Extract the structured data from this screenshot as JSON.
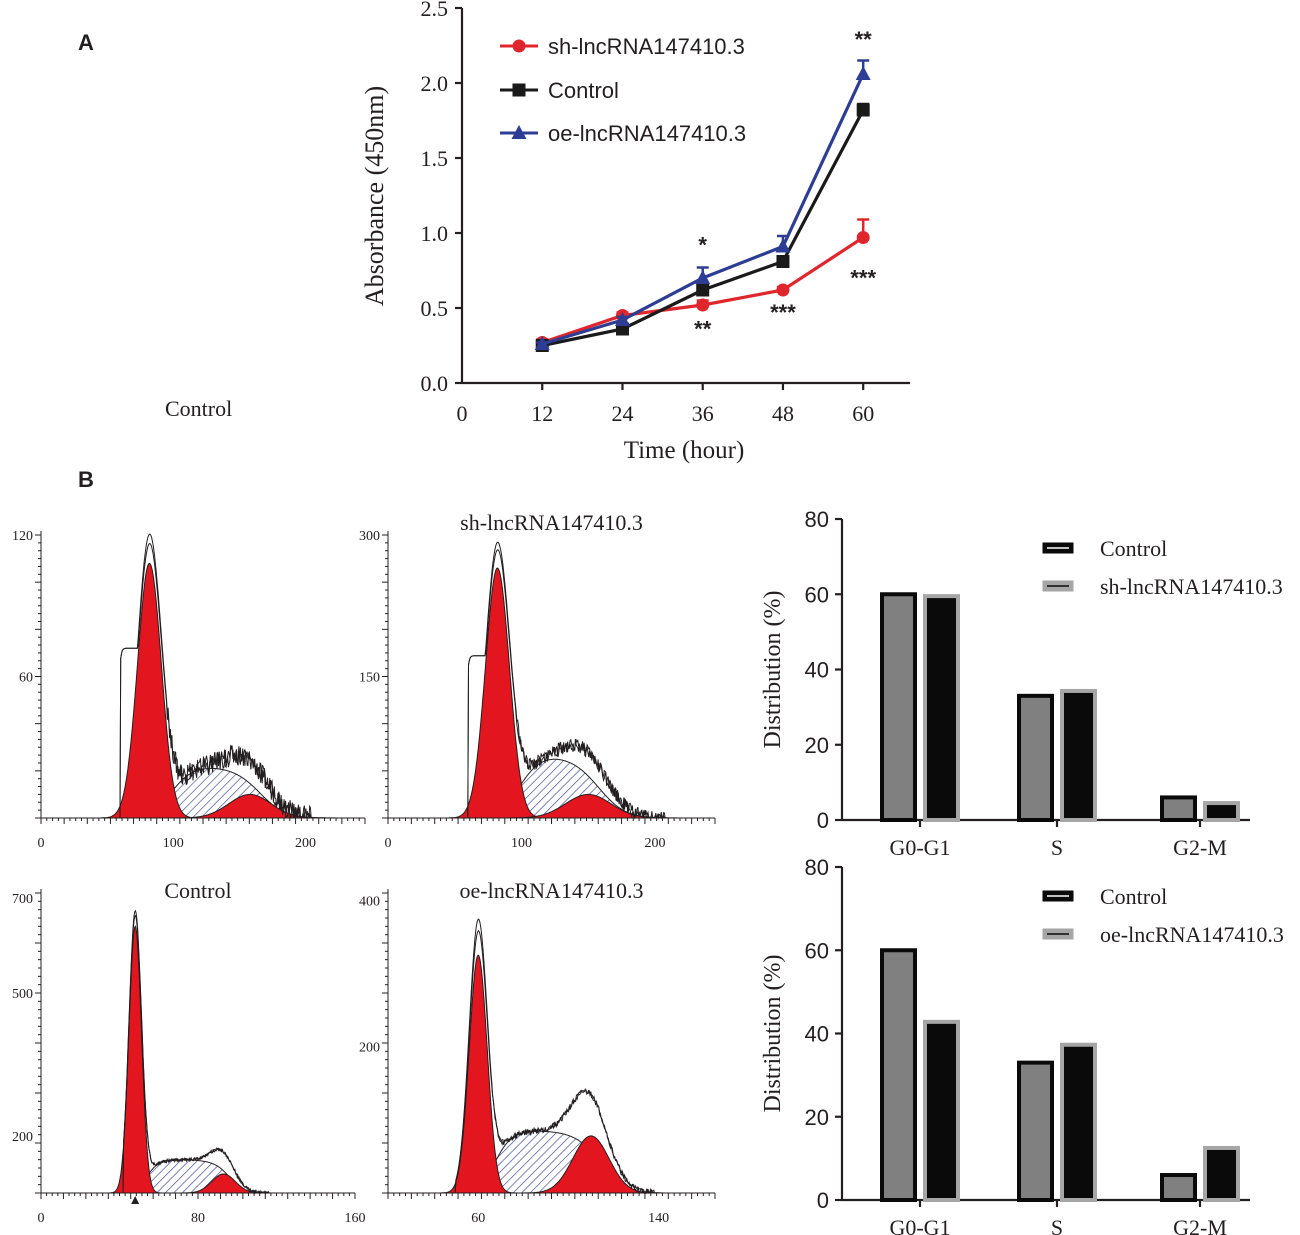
{
  "panel_labels": {
    "a": "A",
    "b": "B"
  },
  "stray_label": "Control",
  "colors": {
    "sh": "#e0262d",
    "control": "#1a1a1a",
    "oe": "#2e3d94",
    "red_fill": "#e3151f",
    "hatch": "#3d4a99",
    "bar_gray": "#808080",
    "bar_black": "#0a0a0a",
    "bar_edge_gray": "#a6a6a6"
  },
  "chart_data": [
    {
      "id": "growth",
      "type": "line",
      "xlabel": "Time (hour)",
      "ylabel": "Absorbance (450nm)",
      "x_origin_label": "0",
      "xlim": [
        0,
        67
      ],
      "ylim": [
        0,
        2.5
      ],
      "x_ticks": [
        12,
        24,
        36,
        48,
        60
      ],
      "y_ticks": [
        "0.0",
        "0.5",
        "1.0",
        "1.5",
        "2.0",
        "2.5"
      ],
      "series": [
        {
          "name": "sh-lncRNA147410.3",
          "marker": "circle",
          "color": "#e0262d",
          "x": [
            12,
            24,
            36,
            48,
            60
          ],
          "y": [
            0.27,
            0.45,
            0.52,
            0.62,
            0.97
          ],
          "err": [
            0.02,
            0.02,
            0.03,
            0.02,
            0.12
          ]
        },
        {
          "name": "Control",
          "marker": "square",
          "color": "#1a1a1a",
          "x": [
            12,
            24,
            36,
            48,
            60
          ],
          "y": [
            0.25,
            0.36,
            0.62,
            0.81,
            1.82
          ],
          "err": [
            0.01,
            0.02,
            0.04,
            0.03,
            0.04
          ]
        },
        {
          "name": "oe-lncRNA147410.3",
          "marker": "triangle",
          "color": "#2e3d94",
          "x": [
            12,
            24,
            36,
            48,
            60
          ],
          "y": [
            0.26,
            0.42,
            0.7,
            0.91,
            2.06
          ],
          "err": [
            0.01,
            0.02,
            0.07,
            0.07,
            0.09
          ]
        }
      ],
      "annotations": [
        {
          "text": "**",
          "x": 60,
          "y": 2.24
        },
        {
          "text": "*",
          "x": 36,
          "y": 0.87
        },
        {
          "text": "**",
          "x": 36,
          "y": 0.31
        },
        {
          "text": "***",
          "x": 48,
          "y": 0.42
        },
        {
          "text": "***",
          "x": 60,
          "y": 0.65
        }
      ]
    },
    {
      "id": "hist-sh-control",
      "type": "area",
      "title": "",
      "x_ticks": [
        "0",
        "100",
        "200"
      ],
      "x_tick_values": [
        0,
        100,
        200
      ],
      "xlim": [
        0,
        245
      ],
      "y_ticks": [
        "120",
        "60"
      ],
      "y_tick_values": [
        120,
        60
      ],
      "ylim": [
        0,
        120
      ],
      "g1": {
        "mu": 82,
        "sigma": 9,
        "amp": 108
      },
      "g2": {
        "mu": 158,
        "sigma": 16,
        "amp": 10
      },
      "s_phase": {
        "from": 82,
        "to": 158,
        "height": 22
      },
      "envelope": {
        "start": 58,
        "end": 206,
        "shoulder_at": 64,
        "shoulder_val": 72,
        "noise": 4.5,
        "peak_extra": 10
      },
      "marker": null
    },
    {
      "id": "hist-sh",
      "type": "area",
      "title": "sh-lncRNA147410.3",
      "x_ticks": [
        "0",
        "100",
        "200"
      ],
      "x_tick_values": [
        0,
        100,
        200
      ],
      "xlim": [
        0,
        245
      ],
      "y_ticks": [
        "300",
        "150"
      ],
      "y_tick_values": [
        300,
        150
      ],
      "ylim": [
        0,
        300
      ],
      "g1": {
        "mu": 82,
        "sigma": 9,
        "amp": 265
      },
      "g2": {
        "mu": 150,
        "sigma": 17,
        "amp": 25
      },
      "s_phase": {
        "from": 82,
        "to": 150,
        "height": 67
      },
      "envelope": {
        "start": 58,
        "end": 210,
        "shoulder_at": 65,
        "shoulder_val": 172,
        "noise": 7,
        "peak_extra": 20
      },
      "marker": null
    },
    {
      "id": "hist-control",
      "type": "area",
      "title": "Control",
      "x_ticks": [
        "0",
        "80",
        "160"
      ],
      "x_tick_values": [
        0,
        80,
        160
      ],
      "xlim": [
        0,
        160
      ],
      "y_ticks": [
        "700",
        "500",
        "200"
      ],
      "y_tick_values": [
        700,
        500,
        200
      ],
      "ylim": [
        80,
        710
      ],
      "y_base": 80,
      "g1": {
        "mu": 48,
        "sigma": 3.2,
        "amp": 560
      },
      "g2": {
        "mu": 93,
        "sigma": 6,
        "amp": 40
      },
      "s_phase": {
        "from": 48,
        "to": 93,
        "height": 70
      },
      "envelope": {
        "start": 40,
        "end": 118,
        "shoulder_at": 52,
        "shoulder_val": 110,
        "noise": 3,
        "peak_extra": 25
      },
      "marker": {
        "x": 48
      }
    },
    {
      "id": "hist-oe",
      "type": "area",
      "title": "oe-lncRNA147410.3",
      "x_ticks": [
        "60",
        "140"
      ],
      "x_tick_values": [
        60,
        140
      ],
      "xlim": [
        20,
        165
      ],
      "y_ticks": [
        "400",
        "200"
      ],
      "y_tick_values": [
        400,
        200
      ],
      "ylim": [
        0,
        410
      ],
      "g1": {
        "mu": 60,
        "sigma": 4,
        "amp": 325
      },
      "g2": {
        "mu": 110,
        "sigma": 8,
        "amp": 78
      },
      "s_phase": {
        "from": 60,
        "to": 110,
        "height": 85
      },
      "envelope": {
        "start": 48,
        "end": 140,
        "shoulder_at": 66,
        "shoulder_val": 120,
        "noise": 4,
        "peak_extra": 40
      },
      "marker": null
    },
    {
      "id": "dist-sh",
      "type": "bar",
      "ylabel": "Distribution (%)",
      "categories": [
        "G0-G1",
        "S",
        "G2-M"
      ],
      "ylim": [
        0,
        80
      ],
      "y_ticks": [
        0,
        20,
        40,
        60,
        80
      ],
      "series": [
        {
          "name": "Control",
          "values": [
            60,
            33,
            6
          ]
        },
        {
          "name": "sh-lncRNA147410.3",
          "values": [
            59.5,
            34.3,
            4.5
          ]
        }
      ]
    },
    {
      "id": "dist-oe",
      "type": "bar",
      "ylabel": "Distribution (%)",
      "categories": [
        "G0-G1",
        "S",
        "G2-M"
      ],
      "ylim": [
        0,
        80
      ],
      "y_ticks": [
        0,
        20,
        40,
        60,
        80
      ],
      "series": [
        {
          "name": "Control",
          "values": [
            60,
            33,
            6
          ]
        },
        {
          "name": "oe-lncRNA147410.3",
          "values": [
            42.8,
            37.3,
            12.5
          ]
        }
      ]
    }
  ]
}
